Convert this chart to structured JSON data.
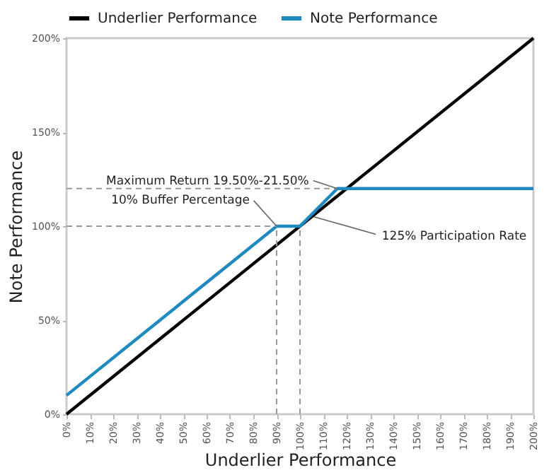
{
  "chart_data": {
    "type": "line",
    "xlabel": "Underlier Performance",
    "ylabel": "Note Performance",
    "series": [
      {
        "name": "Underlier Performance",
        "color": "#000000",
        "x": [
          0,
          200
        ],
        "values": [
          0,
          200
        ]
      },
      {
        "name": "Note Performance",
        "color": "#1f8ac0",
        "x": [
          0,
          90,
          100,
          116,
          200
        ],
        "values": [
          10,
          100,
          100,
          120,
          120
        ]
      },
      {
        "color": "#999999",
        "line_style": "dashed",
        "x": [
          0,
          116
        ],
        "values": [
          120,
          120
        ]
      },
      {
        "color": "#999999",
        "line_style": "dashed",
        "x": [
          0,
          90
        ],
        "values": [
          100,
          100
        ]
      },
      {
        "color": "#999999",
        "line_style": "dashed",
        "x": [
          90,
          90
        ],
        "values": [
          0,
          100
        ]
      },
      {
        "color": "#999999",
        "line_style": "dashed",
        "x": [
          100,
          100
        ],
        "values": [
          0,
          100
        ]
      }
    ],
    "annotations": [
      {
        "text": "Maximum Return 19.50%-21.50%",
        "x": 116,
        "y": 120
      },
      {
        "text": "10% Buffer Percentage",
        "x": 90,
        "y": 100
      },
      {
        "text": "125% Participation Rate",
        "x": 106,
        "y": 105
      }
    ],
    "xlim": [
      0,
      200
    ],
    "xticks": [
      {
        "value": 0,
        "label": "0%"
      },
      {
        "value": 10,
        "label": "10%"
      },
      {
        "value": 20,
        "label": "20%"
      },
      {
        "value": 30,
        "label": "30%"
      },
      {
        "value": 40,
        "label": "40%"
      },
      {
        "value": 50,
        "label": "50%"
      },
      {
        "value": 60,
        "label": "60%"
      },
      {
        "value": 70,
        "label": "70%"
      },
      {
        "value": 80,
        "label": "80%"
      },
      {
        "value": 90,
        "label": "90%"
      },
      {
        "value": 100,
        "label": "100%"
      },
      {
        "value": 110,
        "label": "110%"
      },
      {
        "value": 120,
        "label": "120%"
      },
      {
        "value": 130,
        "label": "130%"
      },
      {
        "value": 140,
        "label": "140%"
      },
      {
        "value": 150,
        "label": "150%"
      },
      {
        "value": 160,
        "label": "160%"
      },
      {
        "value": 170,
        "label": "170%"
      },
      {
        "value": 180,
        "label": "180%"
      },
      {
        "value": 190,
        "label": "190%"
      },
      {
        "value": 200,
        "label": "200%"
      }
    ],
    "ylim": [
      0,
      200
    ],
    "yticks": [
      {
        "value": 0,
        "label": "0%"
      },
      {
        "value": 50,
        "label": "50%"
      },
      {
        "value": 100,
        "label": "100%"
      },
      {
        "value": 150,
        "label": "150%"
      },
      {
        "value": 200,
        "label": "200%"
      }
    ],
    "grid": false,
    "legend": "top",
    "marker": "none",
    "line_style": "solid"
  }
}
